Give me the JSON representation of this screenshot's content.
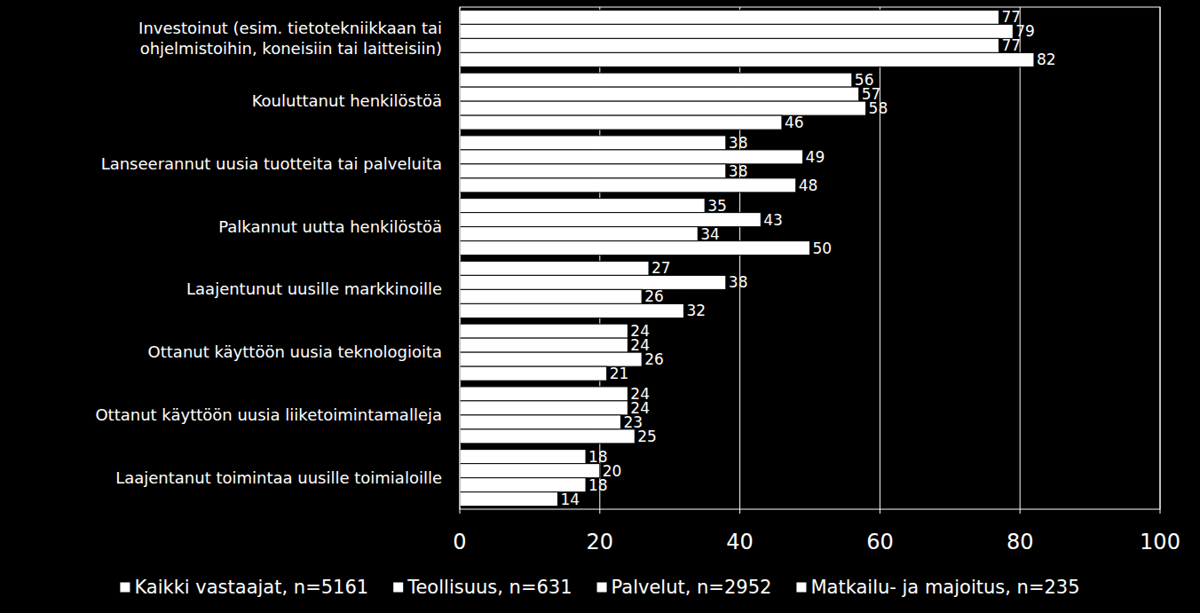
{
  "chart_data": {
    "type": "bar",
    "orientation": "horizontal",
    "categories": [
      "Investoinut  (esim. tietotekniikkaan tai ohjelmistoihin, koneisiin tai laitteisiin)",
      "Kouluttanut henkilöstöä",
      "Lanseerannut uusia tuotteita tai palveluita",
      "Palkannut uutta henkilöstöä",
      "Laajentunut uusille markkinoille",
      "Ottanut käyttöön uusia teknologioita",
      "Ottanut käyttöön uusia liiketoimintamalleja",
      "Laajentanut toimintaa uusille toimialoille"
    ],
    "series": [
      {
        "name": "Kaikki vastaajat, n=5161",
        "color": "#ffffff",
        "values": [
          77,
          56,
          38,
          35,
          27,
          24,
          24,
          18
        ]
      },
      {
        "name": "Teollisuus, n=631",
        "color": "#ffffff",
        "values": [
          79,
          57,
          49,
          43,
          38,
          24,
          24,
          20
        ]
      },
      {
        "name": "Palvelut, n=2952",
        "color": "#ffffff",
        "values": [
          77,
          58,
          38,
          34,
          26,
          26,
          23,
          18
        ]
      },
      {
        "name": "Matkailu- ja majoitus, n=235",
        "color": "#ffffff",
        "values": [
          82,
          46,
          48,
          50,
          32,
          21,
          25,
          14
        ]
      }
    ],
    "xlim": [
      0,
      100
    ],
    "xticks": [
      0,
      20,
      40,
      60,
      80,
      100
    ],
    "grid": true,
    "data_labels": true,
    "legend": "bottom"
  }
}
